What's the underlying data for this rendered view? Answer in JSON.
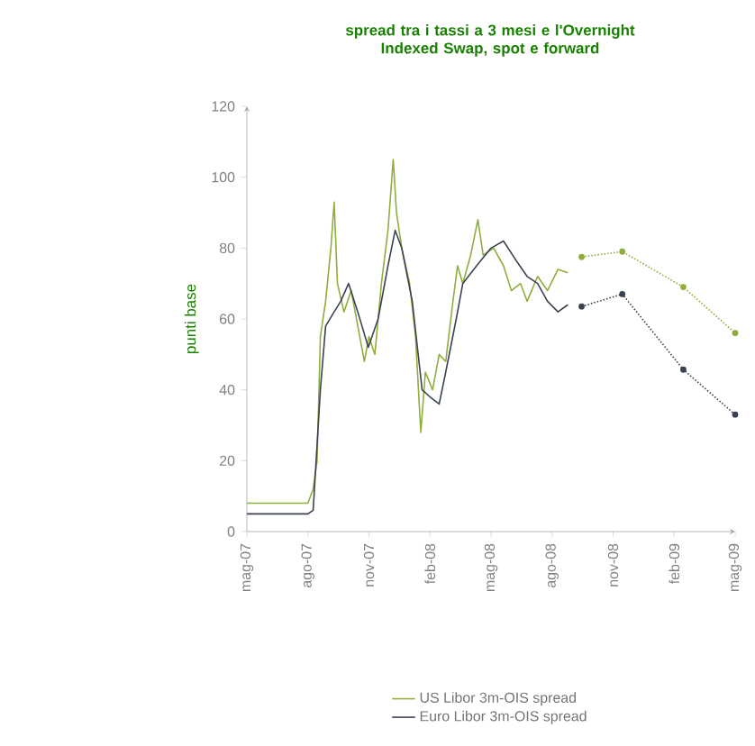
{
  "chart_data": {
    "type": "line",
    "title": "spread tra i tassi a 3 mesi e l'Overnight Indexed Swap, spot e forward",
    "ylabel": "punti base",
    "xlim": [
      "2007-05-01",
      "2009-05-01"
    ],
    "ylim": [
      0,
      120
    ],
    "yticks": [
      0,
      20,
      40,
      60,
      80,
      100,
      120
    ],
    "xticks": [
      {
        "value": "2007-05-01",
        "label": "mag-07"
      },
      {
        "value": "2007-08-01",
        "label": "ago-07"
      },
      {
        "value": "2007-11-01",
        "label": "nov-07"
      },
      {
        "value": "2008-02-01",
        "label": "feb-08"
      },
      {
        "value": "2008-05-01",
        "label": "mag-08"
      },
      {
        "value": "2008-08-01",
        "label": "ago-08"
      },
      {
        "value": "2008-11-01",
        "label": "nov-08"
      },
      {
        "value": "2009-02-01",
        "label": "feb-09"
      },
      {
        "value": "2009-05-01",
        "label": "mag-09"
      }
    ],
    "legend": "bottom",
    "grid": false,
    "series": [
      {
        "name": "US Libor 3m-OIS spread",
        "color": "#8fae3c",
        "line_style": "solid",
        "marker": "none",
        "x": [
          "2007-05-01",
          "2007-08-01",
          "2007-08-09",
          "2007-08-15",
          "2007-08-20",
          "2007-08-28",
          "2007-09-05",
          "2007-09-10",
          "2007-09-15",
          "2007-09-25",
          "2007-10-05",
          "2007-10-15",
          "2007-10-25",
          "2007-11-01",
          "2007-11-10",
          "2007-11-20",
          "2007-11-30",
          "2007-12-07",
          "2007-12-12",
          "2007-12-20",
          "2008-01-01",
          "2008-01-10",
          "2008-01-18",
          "2008-01-25",
          "2008-02-05",
          "2008-02-15",
          "2008-02-25",
          "2008-03-05",
          "2008-03-12",
          "2008-03-20",
          "2008-04-01",
          "2008-04-12",
          "2008-04-20",
          "2008-05-05",
          "2008-05-20",
          "2008-06-01",
          "2008-06-15",
          "2008-06-25",
          "2008-07-10",
          "2008-07-25",
          "2008-08-10",
          "2008-08-25"
        ],
        "values": [
          8,
          8,
          12,
          20,
          55,
          65,
          80,
          93,
          70,
          62,
          68,
          58,
          48,
          55,
          50,
          70,
          85,
          105,
          90,
          80,
          70,
          55,
          28,
          45,
          40,
          50,
          48,
          65,
          75,
          70,
          78,
          88,
          78,
          80,
          75,
          68,
          70,
          65,
          72,
          68,
          74,
          73
        ]
      },
      {
        "name": "Euro Libor 3m-OIS spread",
        "color": "#3b4252",
        "line_style": "solid",
        "marker": "none",
        "x": [
          "2007-05-01",
          "2007-08-01",
          "2007-08-09",
          "2007-08-20",
          "2007-08-28",
          "2007-09-10",
          "2007-09-20",
          "2007-10-01",
          "2007-10-15",
          "2007-10-31",
          "2007-11-15",
          "2007-11-30",
          "2007-12-10",
          "2007-12-20",
          "2008-01-05",
          "2008-01-20",
          "2008-02-01",
          "2008-02-15",
          "2008-02-25",
          "2008-03-10",
          "2008-03-20",
          "2008-04-10",
          "2008-05-01",
          "2008-05-20",
          "2008-06-10",
          "2008-06-25",
          "2008-07-10",
          "2008-07-25",
          "2008-08-10",
          "2008-08-25"
        ],
        "values": [
          5,
          5,
          6,
          40,
          58,
          62,
          65,
          70,
          62,
          52,
          60,
          75,
          85,
          80,
          65,
          40,
          38,
          36,
          45,
          60,
          70,
          75,
          80,
          82,
          76,
          72,
          70,
          65,
          62,
          64
        ]
      },
      {
        "color": "#8fae3c",
        "line_style": "dotted",
        "marker": "circle",
        "x": [
          "2008-09-15",
          "2008-11-15",
          "2009-02-15",
          "2009-05-01"
        ],
        "values": [
          77.5,
          79,
          69,
          56
        ]
      },
      {
        "color": "#3b4252",
        "line_style": "dotted",
        "marker": "circle",
        "x": [
          "2008-09-15",
          "2008-11-15",
          "2009-02-15",
          "2009-05-01"
        ],
        "values": [
          63.5,
          67,
          45.7,
          33
        ]
      }
    ]
  }
}
